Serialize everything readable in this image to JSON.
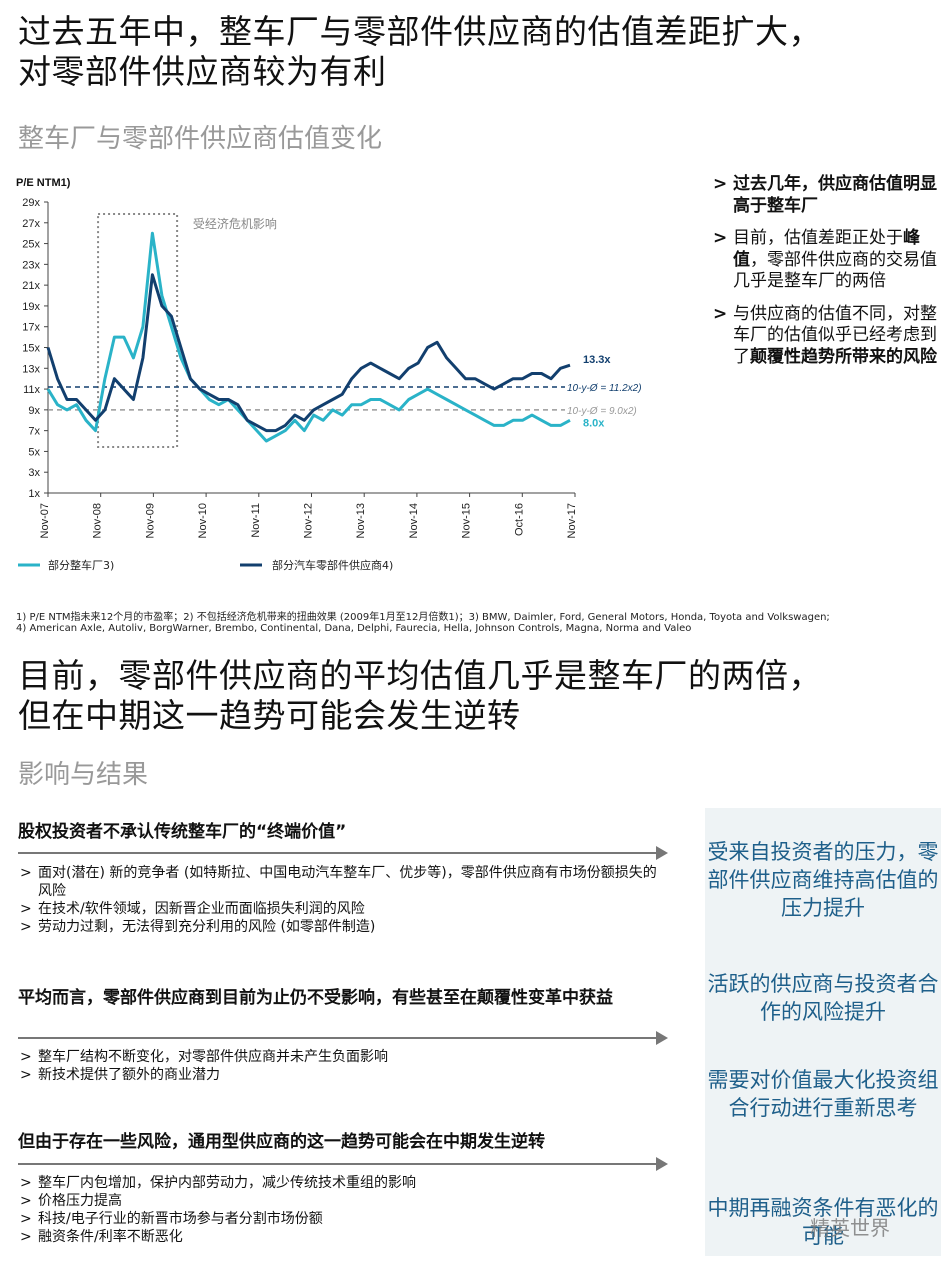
{
  "colors": {
    "light_series": "#2ab3c8",
    "dark_series": "#123f6e",
    "right_panel_bg": "#eef3f5",
    "right_panel_text": "#1e5f8a",
    "subtitle": "#999999"
  },
  "top": {
    "title_line1": "过去五年中，整车厂与零部件供应商的估值差距扩大，",
    "title_line2": "对零部件供应商较为有利",
    "subtitle": "整车厂与零部件供应商估值变化"
  },
  "side_bullets": {
    "b1": "过去几年，供应商估值明显高于整车厂",
    "b2_pre": "目前，估值差距正处于",
    "b2_bold": "峰值",
    "b2_post": "，零部件供应商的交易值几乎是整车厂的两倍",
    "b3_pre": "与供应商的估值不同，对整车厂的估值似乎已经考虑到了",
    "b3_bold": "颠覆性趋势所带来的风险"
  },
  "chart_data": {
    "type": "line",
    "ylabel": "P/E NTM1)",
    "y_ticks": [
      "1x",
      "3x",
      "5x",
      "7x",
      "9x",
      "11x",
      "13x",
      "15x",
      "17x",
      "19x",
      "21x",
      "23x",
      "25x",
      "27x",
      "29x"
    ],
    "ylim": [
      1,
      29
    ],
    "x_ticks": [
      "Nov-07",
      "Nov-08",
      "Nov-09",
      "Nov-10",
      "Nov-11",
      "Nov-12",
      "Nov-13",
      "Nov-14",
      "Nov-15",
      "Oct-16",
      "Nov-17"
    ],
    "crisis_label": "受经济危机影响",
    "ref_lines": [
      {
        "label": "10-y-Ø = 11.2x2)",
        "value": 11.2,
        "color": "#123f6e"
      },
      {
        "label": "10-y-Ø = 9.0x2)",
        "value": 9.0,
        "color": "#999999"
      }
    ],
    "end_labels": {
      "dark": "13.3x",
      "light": "8.0x"
    },
    "series": [
      {
        "name": "部分整车厂3)",
        "color": "#2ab3c8",
        "values": [
          11,
          9.5,
          9,
          9.5,
          8,
          7,
          12,
          16,
          16,
          14,
          17,
          26,
          20,
          17,
          14,
          12,
          11,
          10,
          9.5,
          10,
          9,
          8,
          7,
          6,
          6.5,
          7,
          8,
          7,
          8.5,
          8,
          9,
          8.5,
          9.5,
          9.5,
          10,
          10,
          9.5,
          9,
          10,
          10.5,
          11,
          10.5,
          10,
          9.5,
          9,
          8.5,
          8,
          7.5,
          7.5,
          8,
          8,
          8.5,
          8,
          7.5,
          7.5,
          8
        ]
      },
      {
        "name": "部分汽车零部件供应商4)",
        "color": "#123f6e",
        "values": [
          15,
          12,
          10,
          10,
          9,
          8,
          9,
          12,
          11,
          10,
          14,
          22,
          19,
          18,
          15,
          12,
          11,
          10.5,
          10,
          10,
          9.5,
          8,
          7.5,
          7,
          7,
          7.5,
          8.5,
          8,
          9,
          9.5,
          10,
          10.5,
          12,
          13,
          13.5,
          13,
          12.5,
          12,
          13,
          13.5,
          15,
          15.5,
          14,
          13,
          12,
          12,
          11.5,
          11,
          11.5,
          12,
          12,
          12.5,
          12.5,
          12,
          13,
          13.3
        ]
      }
    ]
  },
  "footnotes": {
    "line1": "1) P/E NTM指未来12个月的市盈率；2) 不包括经济危机带来的扭曲效果 (2009年1月至12月倍数1)；3) BMW, Daimler, Ford, General Motors, Honda, Toyota and Volkswagen;",
    "line2": "4) American Axle, Autoliv, BorgWarner, Brembo, Continental, Dana, Delphi, Faurecia, Hella, Johnson Controls, Magna, Norma and Valeo"
  },
  "bottom": {
    "title_line1": "目前，零部件供应商的平均估值几乎是整车厂的两倍，",
    "title_line2": "但在中期这一趋势可能会发生逆转",
    "subtitle": "影响与结果"
  },
  "sections": [
    {
      "title": "股权投资者不承认传统整车厂的“终端价值”",
      "bullets": [
        "面对(潜在) 新的竞争者 (如特斯拉、中国电动汽车整车厂、优步等)，零部件供应商有市场份额损失的风险",
        "在技术/软件领域，因新晋企业而面临损失利润的风险",
        "劳动力过剩，无法得到充分利用的风险 (如零部件制造)"
      ]
    },
    {
      "title": "平均而言，零部件供应商到目前为止仍不受影响，有些甚至在颠覆性变革中获益",
      "bullets": [
        "整车厂结构不断变化，对零部件供应商并未产生负面影响",
        "新技术提供了额外的商业潜力"
      ]
    },
    {
      "title": "但由于存在一些风险，通用型供应商的这一趋势可能会在中期发生逆转",
      "bullets": [
        "整车厂内包增加，保护内部劳动力，减少传统技术重组的影响",
        "价格压力提高",
        "科技/电子行业的新晋市场参与者分割市场份额",
        "融资条件/利率不断恶化"
      ]
    }
  ],
  "right_panel": [
    "受来自投资者的压力，零部件供应商维持高估值的压力提升",
    "活跃的供应商与投资者合作的风险提升",
    "需要对价值最大化投资组合行动进行重新思考",
    "中期再融资条件有恶化的可能"
  ],
  "watermark": "精英世界"
}
